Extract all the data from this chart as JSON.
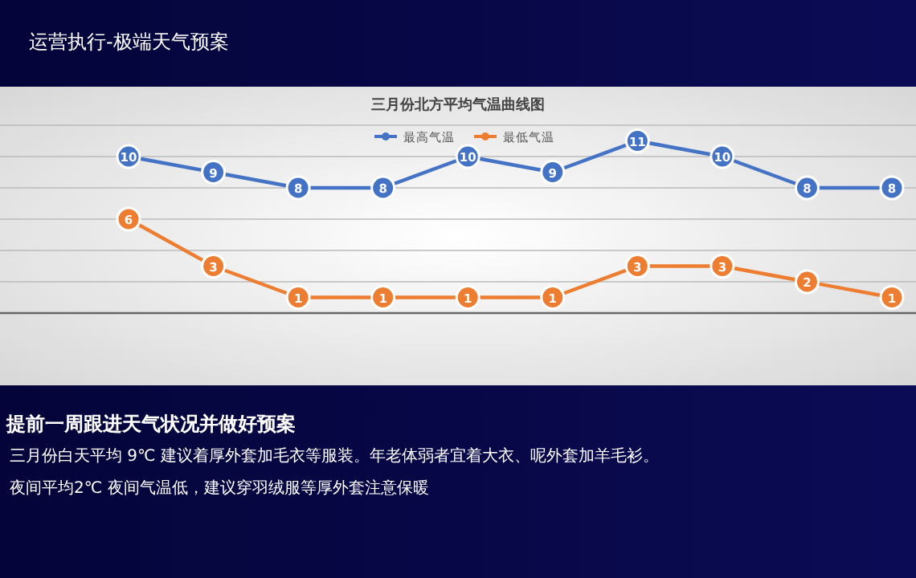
{
  "chart_data": {
    "type": "line",
    "title": "三月份北方平均气温曲线图",
    "categories": [
      null,
      null,
      null,
      null,
      null,
      null,
      null,
      null,
      null,
      null
    ],
    "series": [
      {
        "name": "最高气温",
        "color": "#4472c4",
        "values": [
          10,
          9,
          8,
          8,
          10,
          9,
          11,
          10,
          8,
          8
        ]
      },
      {
        "name": "最低气温",
        "color": "#ed7d31",
        "values": [
          6,
          3,
          1,
          1,
          1,
          1,
          3,
          3,
          2,
          1
        ]
      }
    ],
    "ylim": [
      0,
      12
    ],
    "yticks": [
      {
        "value": 0,
        "label": null
      },
      {
        "value": 2,
        "label": null
      },
      {
        "value": 4,
        "label": null
      },
      {
        "value": 6,
        "label": null
      },
      {
        "value": 8,
        "label": null
      },
      {
        "value": 10,
        "label": null
      },
      {
        "value": 12,
        "label": null
      }
    ],
    "grid": "y",
    "legend": "top",
    "marker": "circle",
    "line_style": "solid",
    "data_labels": true,
    "annotations": [
      "运营执行-极端天气预案",
      "提前一周跟进天气状况并做好预案",
      "三月份白天平均 9℃ 建议着厚外套加毛衣等服装。年老体弱者宜着大衣、呢外套加羊毛衫。",
      "夜间平均2℃ 夜间气温低，建议穿羽绒服等厚外套注意保暖"
    ]
  }
}
